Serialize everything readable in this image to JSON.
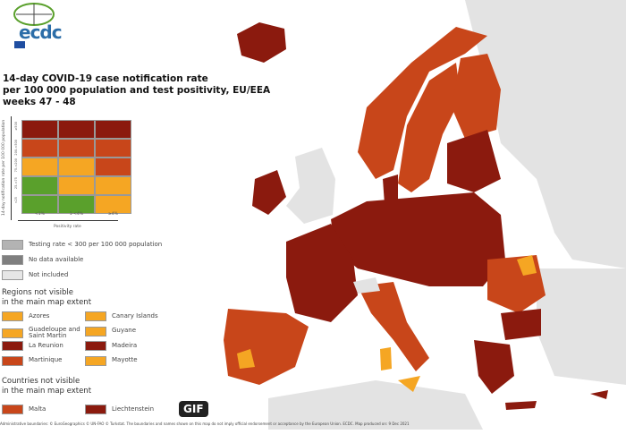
{
  "logo": {
    "text": "ecdc"
  },
  "title": [
    "14-day COVID-19 case notification rate",
    "per 100 000 population and test positivity, EU/EEA",
    "weeks 47 - 48"
  ],
  "matrix": {
    "y_axis_label": "14-day notification rate per 100 000 population",
    "x_axis_label": "Positivity rate",
    "columns": [
      "<1%",
      "1-<4%",
      "≥4%"
    ],
    "rows": [
      "≥500",
      "200-<500",
      "75-<200",
      "25-<75",
      "<25"
    ],
    "cells": [
      [
        "#8b1a0e",
        "#8b1a0e",
        "#8b1a0e"
      ],
      [
        "#c8461a",
        "#c8461a",
        "#c8461a"
      ],
      [
        "#f5a623",
        "#f5a623",
        "#c8461a"
      ],
      [
        "#5aa02c",
        "#f5a623",
        "#f5a623"
      ],
      [
        "#5aa02c",
        "#5aa02c",
        "#f5a623"
      ]
    ]
  },
  "legend": [
    {
      "label": "Testing rate < 300 per 100 000 population",
      "color": "#b3b3b3"
    },
    {
      "label": "No data available",
      "color": "#7f7f7f"
    },
    {
      "label": "Not included",
      "color": "#e6e6e6"
    }
  ],
  "regions_heading": [
    "Regions not visible",
    "in the main map extent"
  ],
  "regions": [
    {
      "label": "Azores",
      "color": "#f5a623"
    },
    {
      "label": "Canary Islands",
      "color": "#f5a623"
    },
    {
      "label": "Guadeloupe and Saint Martin",
      "color": "#f5a623"
    },
    {
      "label": "Guyane",
      "color": "#f5a623"
    },
    {
      "label": "La Reunion",
      "color": "#8b1a0e"
    },
    {
      "label": "Madeira",
      "color": "#8b1a0e"
    },
    {
      "label": "Martinique",
      "color": "#c8461a"
    },
    {
      "label": "Mayotte",
      "color": "#f5a623"
    }
  ],
  "countries_heading": [
    "Countries not visible",
    "in the main map extent"
  ],
  "countries": [
    {
      "label": "Malta",
      "color": "#c8461a"
    },
    {
      "label": "Liechtenstein",
      "color": "#8b1a0e"
    }
  ],
  "footer": [
    "Administrative boundaries: © EuroGeographics © UN-FAO © Turkstat. The boundaries and names shown on this map do not imply official endorsement or acceptance by the European Union. ECDC. Map produced on: 9 Dec 2021"
  ],
  "overlay_badge": "GIF",
  "colors": {
    "dark_red": "#8b1a0e",
    "red": "#c8461a",
    "orange": "#f5a623",
    "green": "#5aa02c",
    "not_included": "#e6e6e6"
  }
}
